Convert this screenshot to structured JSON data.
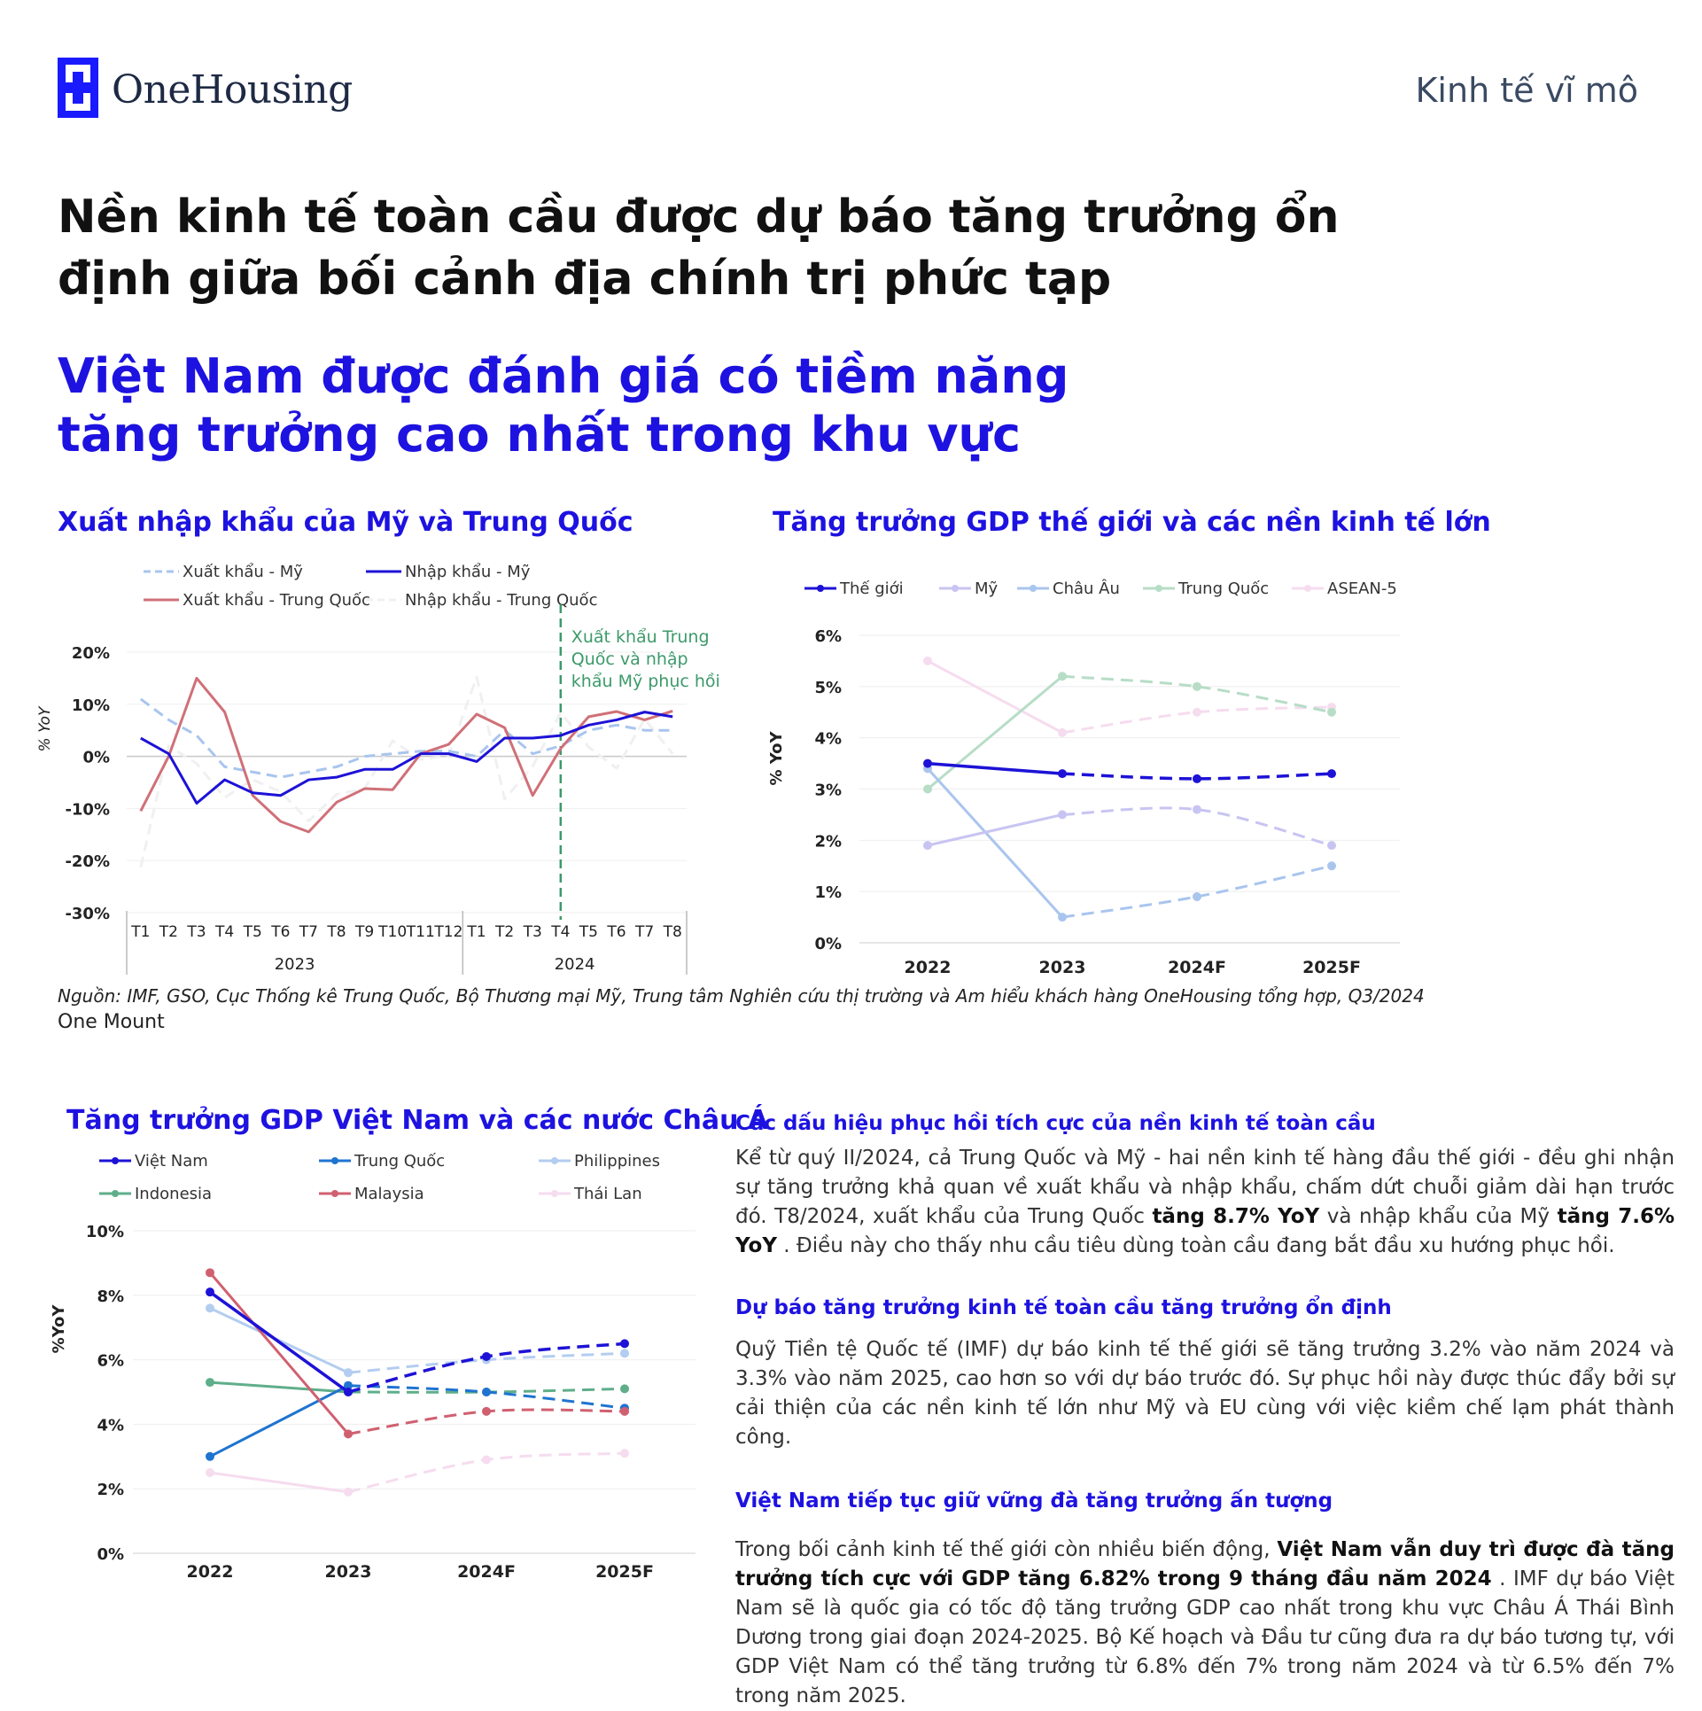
{
  "header": {
    "brand": "OneHousing",
    "topic": "Kinh tế vĩ mô"
  },
  "headline": "Nền kinh tế toàn cầu được dự báo tăng trưởng ổn định giữa bối cảnh địa chính trị phức tạp",
  "subhead": "Việt Nam được đánh giá có tiềm năng tăng trưởng cao nhất trong khu vực",
  "source": {
    "line1": "Nguồn: IMF, GSO, Cục Thống kê Trung Quốc, Bộ Thương mại Mỹ, Trung tâm Nghiên cứu thị trường và Am hiểu khách hàng OneHousing tổng hợp, Q3/2024",
    "line2": "One Mount"
  },
  "colors": {
    "accent": "#1d12e0",
    "brand": "#1a1aff"
  },
  "chart_data": [
    {
      "type": "line",
      "title": "Xuất nhập khẩu của Mỹ và Trung Quốc",
      "ylabel": "% YoY",
      "ylim": [
        -30,
        20
      ],
      "yticks": [
        "20%",
        "10%",
        "0%",
        "-10%",
        "-20%",
        "-30%"
      ],
      "categories": [
        "T1",
        "T2",
        "T3",
        "T4",
        "T5",
        "T6",
        "T7",
        "T8",
        "T9",
        "T10",
        "T11",
        "T12",
        "T1",
        "T2",
        "T3",
        "T4",
        "T5",
        "T6",
        "T7",
        "T8"
      ],
      "year_groups": [
        {
          "label": "2023"
        },
        {
          "label": "2024"
        }
      ],
      "annotation": "Xuất khẩu Trung Quốc và nhập khẩu Mỹ phục hồi",
      "legend_position": "top",
      "series": [
        {
          "name": "Xuất khẩu - Mỹ",
          "style": "dashed",
          "color": "#a9c5ee",
          "values": [
            11,
            7,
            4,
            -2,
            -3,
            -4,
            -3,
            -2,
            0,
            0.5,
            1,
            1,
            0,
            5,
            0.5,
            2,
            5,
            6,
            5,
            5
          ]
        },
        {
          "name": "Nhập khẩu - Mỹ",
          "style": "solid",
          "color": "#1d12d6",
          "values": [
            3.5,
            0.5,
            -9,
            -4.5,
            -7,
            -7.5,
            -4.5,
            -4,
            -2.5,
            -2.5,
            0.5,
            0.5,
            -1,
            3.5,
            3.5,
            4,
            6,
            7,
            8.5,
            7.6
          ]
        },
        {
          "name": "Xuất khẩu - Trung Quốc",
          "style": "solid",
          "color": "#d07078",
          "values": [
            -10.5,
            0,
            15,
            8.5,
            -7.5,
            -12.5,
            -14.5,
            -8.8,
            -6.2,
            -6.4,
            0.5,
            2.3,
            8.1,
            5.5,
            -7.5,
            1.5,
            7.6,
            8.6,
            7,
            8.7
          ]
        },
        {
          "name": "Nhập khẩu - Trung Quốc",
          "style": "dashed",
          "color": "#f0f0f0",
          "values": [
            -21.3,
            2,
            -1.4,
            -7.9,
            -4.5,
            -6.8,
            -12.4,
            -7.3,
            -6.2,
            3,
            -0.6,
            0.2,
            15.2,
            -8.2,
            -1.9,
            8.4,
            1.8,
            -2.3,
            7.2,
            0.5
          ]
        }
      ]
    },
    {
      "type": "line",
      "title": "Tăng trưởng GDP thế giới và các nền kinh tế lớn",
      "ylabel": "% YoY",
      "ylim": [
        0,
        6
      ],
      "yticks": [
        "6%",
        "5%",
        "4%",
        "3%",
        "2%",
        "1%",
        "0%"
      ],
      "categories": [
        "2022",
        "2023",
        "2024F",
        "2025F"
      ],
      "forecast_from_index": 1,
      "legend_position": "top",
      "series": [
        {
          "name": "Thế giới",
          "color": "#1d12d6",
          "values": [
            3.5,
            3.3,
            3.2,
            3.3
          ]
        },
        {
          "name": "Mỹ",
          "color": "#c8c4f2",
          "values": [
            1.9,
            2.5,
            2.6,
            1.9
          ]
        },
        {
          "name": "Châu Âu",
          "color": "#a9c5ee",
          "values": [
            3.4,
            0.5,
            0.9,
            1.5
          ]
        },
        {
          "name": "Trung Quốc",
          "color": "#b7ddc7",
          "values": [
            3.0,
            5.2,
            5.0,
            4.5
          ]
        },
        {
          "name": "ASEAN-5",
          "color": "#f6dcef",
          "values": [
            5.5,
            4.1,
            4.5,
            4.6
          ]
        }
      ]
    },
    {
      "type": "line",
      "title": "Tăng trưởng GDP Việt Nam và các nước Châu Á",
      "ylabel": "%YoY",
      "ylim": [
        0,
        10
      ],
      "yticks": [
        "10%",
        "8%",
        "6%",
        "4%",
        "2%",
        "0%"
      ],
      "categories": [
        "2022",
        "2023",
        "2024F",
        "2025F"
      ],
      "forecast_from_index": 1,
      "legend_position": "top",
      "series": [
        {
          "name": "Việt Nam",
          "color": "#1d12d6",
          "values": [
            8.1,
            5.0,
            6.1,
            6.5
          ]
        },
        {
          "name": "Trung Quốc",
          "color": "#1f74d0",
          "values": [
            3.0,
            5.2,
            5.0,
            4.5
          ]
        },
        {
          "name": "Philippines",
          "color": "#b3cdf0",
          "values": [
            7.6,
            5.6,
            6.0,
            6.2
          ]
        },
        {
          "name": "Indonesia",
          "color": "#5fae8a",
          "values": [
            5.3,
            5.0,
            5.0,
            5.1
          ]
        },
        {
          "name": "Malaysia",
          "color": "#d06070",
          "values": [
            8.7,
            3.7,
            4.4,
            4.4
          ]
        },
        {
          "name": "Thái Lan",
          "color": "#f6dcef",
          "values": [
            2.5,
            1.9,
            2.9,
            3.1
          ]
        }
      ]
    }
  ],
  "sections": [
    {
      "title": "Các dấu hiệu phục hồi tích cực của nền kinh tế toàn cầu",
      "parts": [
        {
          "t": "Kể từ quý II/2024, cả Trung Quốc và Mỹ - hai nền kinh tế hàng đầu thế giới - đều ghi nhận sự tăng trưởng khả quan về xuất khẩu và nhập khẩu, chấm dứt chuỗi giảm dài hạn trước đó. T8/2024, xuất khẩu của Trung Quốc ",
          "b": false
        },
        {
          "t": "tăng 8.7% YoY",
          "b": true
        },
        {
          "t": " và nhập khẩu của Mỹ ",
          "b": false
        },
        {
          "t": "tăng 7.6% YoY",
          "b": true
        },
        {
          "t": " . Điều này cho thấy nhu cầu tiêu dùng toàn cầu đang bắt đầu xu hướng phục hồi.",
          "b": false
        }
      ]
    },
    {
      "title": "Dự báo tăng trưởng kinh tế toàn cầu tăng trưởng ổn định",
      "parts": [
        {
          "t": "Quỹ Tiền tệ Quốc tế (IMF) dự báo kinh tế thế giới sẽ tăng trưởng 3.2% vào năm 2024 và 3.3% vào năm 2025, cao hơn so với dự báo trước đó. Sự phục hồi này được thúc đẩy bởi sự cải thiện của các nền kinh tế lớn như Mỹ và EU cùng với việc kiềm chế lạm phát thành công.",
          "b": false
        }
      ]
    },
    {
      "title": "Việt Nam tiếp tục giữ vững đà tăng trưởng ấn tượng",
      "parts": [
        {
          "t": "Trong bối cảnh kinh tế thế giới còn nhiều biến động, ",
          "b": false
        },
        {
          "t": "Việt Nam vẫn duy trì được đà tăng trưởng tích cực với GDP tăng 6.82% trong 9 tháng đầu năm 2024",
          "b": true
        },
        {
          "t": " . IMF dự báo Việt Nam sẽ là quốc gia có tốc độ tăng trưởng GDP cao nhất trong khu vực Châu Á Thái Bình Dương trong giai đoạn 2024-2025. Bộ Kế hoạch và Đầu tư cũng đưa ra dự báo tương tự, với GDP Việt Nam có thể tăng trưởng từ 6.8% đến 7% trong năm 2024 và từ 6.5% đến 7% trong năm 2025.",
          "b": false
        }
      ]
    }
  ]
}
